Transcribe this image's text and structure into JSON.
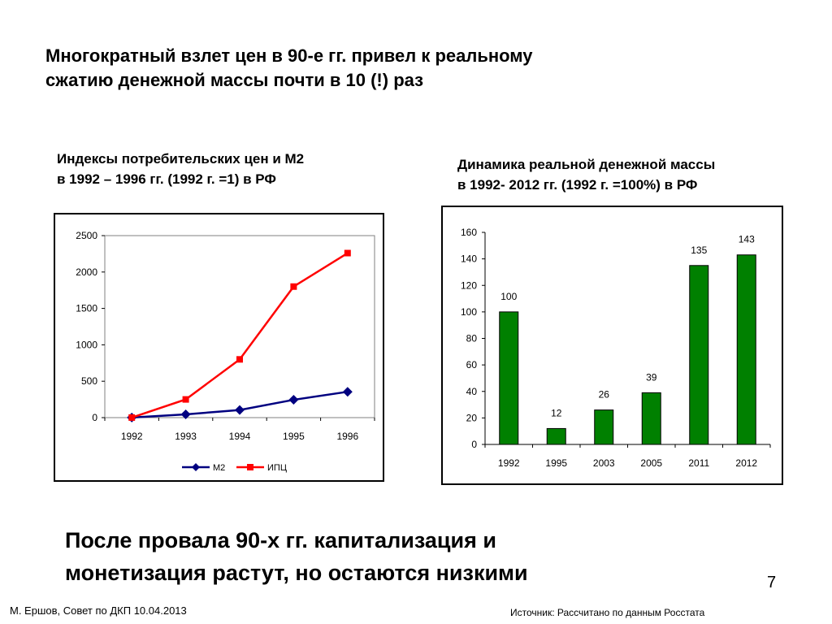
{
  "slide": {
    "title_lines": [
      "Многократный взлет цен в 90-е гг. привел к реальному",
      "сжатию денежной массы почти в 10 (!) раз"
    ],
    "conclusion_lines": [
      "После провала 90-х гг. капитализация и",
      "монетизация растут, но остаются низкими"
    ],
    "page_number": "7",
    "footer_author": "М. Ершов, Совет по ДКП 10.04.2013",
    "footer_source": "Источник: Рассчитано по данным Росстата"
  },
  "chart_data": [
    {
      "type": "line",
      "caption_lines": [
        "Индексы потребительских цен и М2",
        "в 1992 – 1996 гг. (1992 г. =1) в РФ"
      ],
      "x": [
        "1992",
        "1993",
        "1994",
        "1995",
        "1996"
      ],
      "series": [
        {
          "name": "М2",
          "color": "#000080",
          "marker": "diamond",
          "values": [
            1,
            45,
            105,
            245,
            355
          ]
        },
        {
          "name": "ИПЦ",
          "color": "#ff0000",
          "marker": "square",
          "values": [
            1,
            250,
            800,
            1800,
            2260
          ]
        }
      ],
      "ylim": [
        0,
        2500
      ],
      "yticks": [
        0,
        500,
        1000,
        1500,
        2000,
        2500
      ],
      "grid": false,
      "legend": "bottom"
    },
    {
      "type": "bar",
      "caption_lines": [
        "Динамика реальной денежной массы",
        "в 1992- 2012 гг. (1992 г. =100%) в РФ"
      ],
      "categories": [
        "1992",
        "1995",
        "2003",
        "2005",
        "2011",
        "2012"
      ],
      "values": [
        100,
        12,
        26,
        39,
        135,
        143
      ],
      "color": "#008000",
      "ylim": [
        0,
        160
      ],
      "yticks": [
        0,
        20,
        40,
        60,
        80,
        100,
        120,
        140,
        160
      ],
      "grid": false,
      "data_labels": true
    }
  ]
}
